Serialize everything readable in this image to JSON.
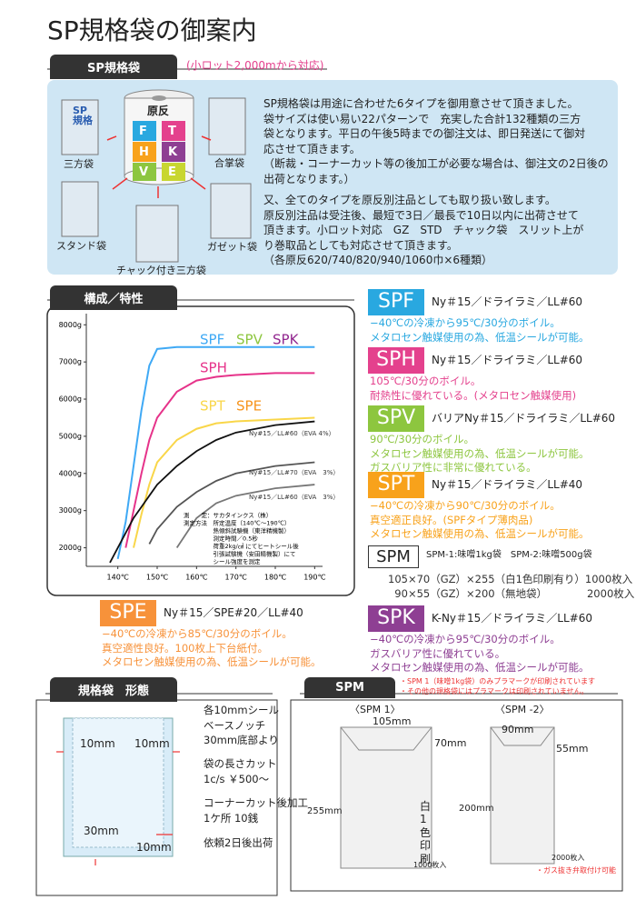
{
  "header": {
    "title": "SP規格袋の御案内"
  },
  "intro": {
    "tab": "SP規格袋",
    "note": "(小ロット2,000mから対応)",
    "roll_label": "原反",
    "roll_letters": [
      "F",
      "T",
      "H",
      "K",
      "V",
      "E"
    ],
    "bag_print": "SP規格",
    "bag_labels": [
      "三方袋",
      "合掌袋",
      "スタンド袋",
      "チャック付き三方袋",
      "ガゼット袋"
    ],
    "paragraph1": [
      "SP規格袋は用途に合わせた6タイプを御用意させて頂きました。",
      "袋サイズは使い易い22パターンで　充実した合計132種類の三方",
      "袋となります。平日の午後5時までの御注文は、即日発送にて御対",
      "応させて頂きます。",
      "（断裁・コーナーカット等の後加工が必要な場合は、御注文の2日後の",
      "出荷となります。）"
    ],
    "paragraph2": [
      "又、全てのタイプを原反別注品としても取り扱い致します。",
      "原反別注品は受注後、最短で3日／最長で10日以内に出荷させて",
      "頂きます。小ロット対応　GZ　STD　チャック袋　スリット上が",
      "り巻取品としても対応させて頂きます。",
      "（各原反620/740/820/940/1060巾×6種類）"
    ]
  },
  "chart_section": {
    "tab": "構成／特性"
  },
  "chart_data": {
    "type": "line",
    "x": [
      138,
      140,
      142,
      144,
      146,
      148,
      150,
      155,
      160,
      165,
      170,
      180,
      190
    ],
    "xlim": [
      132,
      192
    ],
    "ylim": [
      1500,
      8300
    ],
    "xticks": [
      {
        "value": 140,
        "label": "140℃"
      },
      {
        "value": 150,
        "label": "150℃"
      },
      {
        "value": 160,
        "label": "160℃"
      },
      {
        "value": 170,
        "label": "170℃"
      },
      {
        "value": 180,
        "label": "180℃"
      },
      {
        "value": 190,
        "label": "190℃"
      }
    ],
    "yticks": [
      {
        "value": 2000,
        "label": "2000g"
      },
      {
        "value": 3000,
        "label": "3000g"
      },
      {
        "value": 4000,
        "label": "4000g"
      },
      {
        "value": 5000,
        "label": "5000g"
      },
      {
        "value": 6000,
        "label": "6000g"
      },
      {
        "value": 7000,
        "label": "7000g"
      },
      {
        "value": 8000,
        "label": "8000g"
      }
    ],
    "series": [
      {
        "name": "SPF",
        "color": "#3fa9f5",
        "values": [
          null,
          1700,
          2700,
          4200,
          5700,
          6900,
          7350,
          7400,
          7400,
          7400,
          7400,
          7400,
          7400
        ]
      },
      {
        "name": "SPH",
        "color": "#e6338a",
        "values": [
          null,
          null,
          2000,
          3000,
          4000,
          4900,
          5500,
          6200,
          6500,
          6600,
          6650,
          6700,
          6700
        ]
      },
      {
        "name": "SPT",
        "color": "#f9d649",
        "values": [
          null,
          null,
          null,
          2000,
          2900,
          3700,
          4300,
          4900,
          5200,
          5350,
          5400,
          5450,
          5500
        ]
      },
      {
        "name": "Ny#15／LL#60（EVA 4%）",
        "color": "#111111",
        "values": [
          1600,
          2000,
          2400,
          2800,
          3100,
          3400,
          3700,
          4200,
          4600,
          4900,
          5100,
          5300,
          5400
        ]
      },
      {
        "name": "Ny#15／LL#70（EVA　3%）",
        "color": "#555555",
        "values": [
          null,
          null,
          null,
          null,
          null,
          2100,
          2500,
          3100,
          3500,
          3800,
          4000,
          4200,
          4300
        ]
      },
      {
        "name": "Ny#15／LL#60（EVA　3%）",
        "color": "#777777",
        "values": [
          null,
          null,
          null,
          null,
          null,
          null,
          null,
          2000,
          2800,
          3200,
          3400,
          3600,
          3700
        ]
      }
    ],
    "annotations": [
      {
        "text": "SPV",
        "color": "#8dc63f"
      },
      {
        "text": "SPK",
        "color": "#92278f"
      },
      {
        "text": "SPE",
        "color": "#f7941d"
      }
    ],
    "notes": [
      "測　　定：サカタインクス（株）",
      "測定方法　所定温度（140℃〜190℃）",
      "　　　　　熱傾斜試験機（東洋精機製）",
      "　　　　　測定時間／0.5秒",
      "　　　　　荷重2kg/㎠ にてヒートシール後",
      "　　　　　引張試験機（安田精機製）にて",
      "　　　　　シール強度を測定"
    ]
  },
  "types": [
    {
      "code": "SPF",
      "spec": "Ny＃15／ドライラミ／LL#60",
      "color": "#29a8e0",
      "lines": [
        "−40℃の冷凍から95℃/30分のボイル。",
        "メタロセン触媒使用の為、低温シールが可能。"
      ]
    },
    {
      "code": "SPH",
      "spec": "Ny＃15／ドライラミ／LL#60",
      "color": "#e4418d",
      "lines": [
        "105℃/30分のボイル。",
        "耐熱性に優れている。(メタロセン触媒使用)"
      ]
    },
    {
      "code": "SPV",
      "spec": "バリアNy＃15／ドライラミ／LL#60",
      "color": "#8dc63f",
      "lines": [
        "90℃/30分のボイル。",
        "メタロセン触媒使用の為、低温シールが可能。",
        "ガスバリア性に非常に優れている。"
      ]
    },
    {
      "code": "SPT",
      "spec": "Ny＃15／ドライラミ／LL#40",
      "color": "#f8a21b",
      "lines": [
        "−40℃の冷凍から90℃/30分のボイル。",
        "真空適正良好。(SPFタイプ薄肉品)",
        "メタロセン触媒使用の為、低温シールが可能。"
      ]
    },
    {
      "code": "SPM",
      "spec": "SPM-1:味噌1kg袋　SPM-2:味噌500g袋",
      "color": "#333333",
      "lines": [
        "105×70（GZ）×255（白1色印刷有り）1000枚入",
        "  90×55（GZ）×200（無地袋）　　　　 2000枚入"
      ]
    },
    {
      "code": "SPK",
      "spec": "K-Ny＃15／ドライラミ／LL#60",
      "color": "#8e3f93",
      "lines": [
        "−40℃の冷凍から95℃/30分のボイル。",
        "ガスバリア性に優れている。",
        "メタロセン触媒使用の為、低温シールが可能。"
      ]
    },
    {
      "code": "SPE",
      "spec": "Ny＃15／SPE#20／LL#40",
      "color": "#f7923a",
      "lines": [
        "−40℃の冷凍から85℃/30分のボイル。",
        "真空適性良好。100枚上下台紙付。",
        "メタロセン触媒使用の為、低温シールが可能。"
      ]
    }
  ],
  "form": {
    "tab": "規格袋　形態",
    "dims": [
      "10mm",
      "10mm",
      "30mm",
      "10mm"
    ],
    "notes": [
      "各10mmシール",
      "ベースノッチ",
      "30mm底部より",
      "袋の長さカット",
      "1c/s ￥500〜",
      "コーナーカット後加工",
      "1ケ所 10銭",
      "依頼2日後出荷"
    ]
  },
  "spm": {
    "tab": "SPM",
    "notes": [
      "・SPM 1（味噌1kg袋）のみプラマークが印刷されています",
      "・その他の規格袋にはプラマークは印刷されていません。"
    ],
    "bag1": {
      "label": "〈SPM 1〉",
      "width": "105mm",
      "gusset": "70mm",
      "height": "255mm",
      "print": "白1色印刷",
      "count": "1000枚入"
    },
    "bag2": {
      "label": "〈SPM -2〉",
      "width": "90mm",
      "gusset": "55mm",
      "height": "200mm",
      "count": "2000枚入"
    },
    "footer": "・ガス抜き弁取付け可能"
  }
}
